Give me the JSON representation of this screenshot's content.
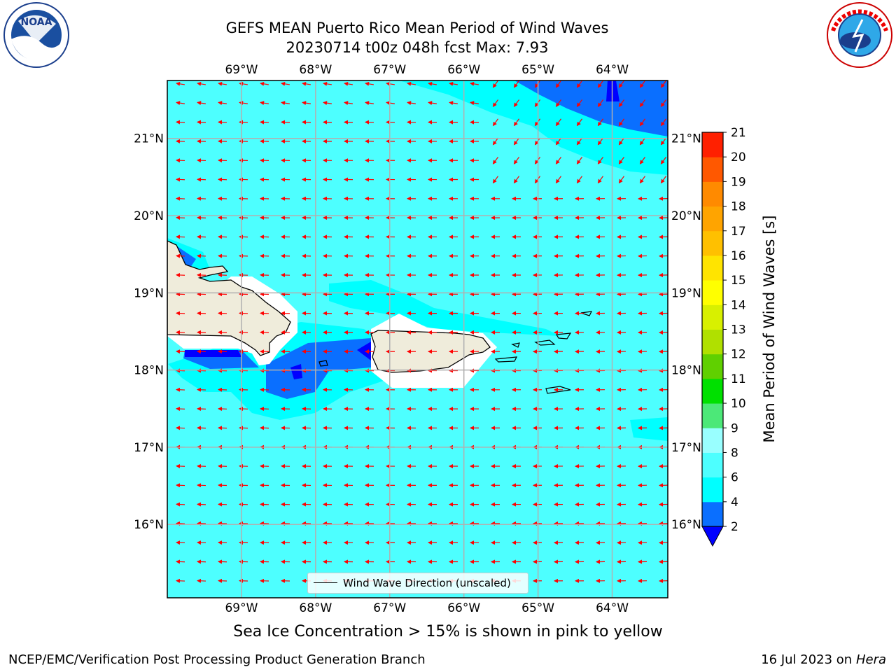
{
  "title": {
    "line1": "GEFS MEAN Puerto Rico Mean Period of Wind Waves",
    "line2": "20230714 t00z 048h fcst   Max: 7.93"
  },
  "logos": {
    "left": "noaa-logo",
    "left_text": "NOAA",
    "left_ring_text": "NATIONAL OCEANIC AND ATMOSPHERIC ADMINISTRATION · U.S. DEPARTMENT OF COMMERCE",
    "right": "nws-logo",
    "right_ring_text": "NATIONAL WEATHER SERVICE"
  },
  "map": {
    "lon_range": [
      -70.0,
      -63.25
    ],
    "lat_range": [
      15.05,
      21.75
    ],
    "lon_ticks": [
      "69°W",
      "68°W",
      "67°W",
      "66°W",
      "65°W",
      "64°W"
    ],
    "lon_values": [
      -69,
      -68,
      -67,
      -66,
      -65,
      -64
    ],
    "lat_ticks": [
      "21°N",
      "20°N",
      "19°N",
      "18°N",
      "17°N",
      "16°N"
    ],
    "lat_values": [
      21,
      20,
      19,
      18,
      17,
      16
    ],
    "grid": true,
    "ocean_color": "#4dffff",
    "land_color": "#efecdb",
    "arrow_color": "#ff0000"
  },
  "legend": {
    "label": "Wind Wave Direction (unscaled)",
    "placement": "bottom-center"
  },
  "colorbar": {
    "label": "Mean Period of Wind Waves [s]",
    "levels": [
      2,
      4,
      6,
      8,
      9,
      10,
      11,
      12,
      13,
      14,
      15,
      16,
      17,
      18,
      19,
      20,
      21
    ],
    "tick_labels": [
      "2",
      "4",
      "6",
      "8",
      "9",
      "10",
      "11",
      "12",
      "13",
      "14",
      "15",
      "16",
      "17",
      "18",
      "19",
      "20",
      "21"
    ],
    "colors": [
      "#0a6fff",
      "#00ffff",
      "#4dffff",
      "#99ffff",
      "#4ce878",
      "#00e000",
      "#60d000",
      "#b0e000",
      "#d8f000",
      "#ffff00",
      "#ffe400",
      "#ffc000",
      "#ffa400",
      "#ff8a00",
      "#ff5800",
      "#ff2000"
    ],
    "under_color": "#0000ff",
    "over_color": "#ff0000"
  },
  "caption": "Sea Ice Concentration > 15% is shown in pink to yellow",
  "footer": {
    "left": "NCEP/EMC/Verification Post Processing Product Generation Branch",
    "date": "16 Jul 2023 on ",
    "host": "Hera"
  }
}
